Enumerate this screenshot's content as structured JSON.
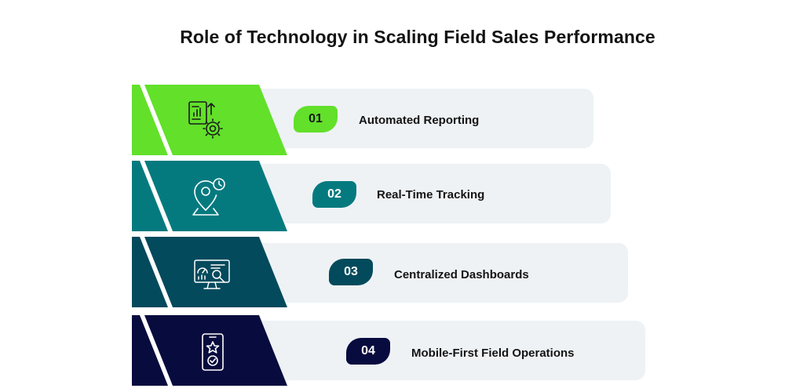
{
  "title": "Role of Technology in Scaling Field Sales Performance",
  "steps": [
    {
      "number": "01",
      "label": "Automated Reporting",
      "color": "#62e02a",
      "badge_text_color": "#1a1a1a",
      "icon": "report-gear-icon"
    },
    {
      "number": "02",
      "label": "Real-Time Tracking",
      "color": "#047a7f",
      "badge_text_color": "#ffffff",
      "icon": "location-clock-icon"
    },
    {
      "number": "03",
      "label": "Centralized Dashboards",
      "color": "#034a5c",
      "badge_text_color": "#ffffff",
      "icon": "monitor-dashboard-icon"
    },
    {
      "number": "04",
      "label": "Mobile-First Field Operations",
      "color": "#070b3e",
      "badge_text_color": "#ffffff",
      "icon": "mobile-star-icon"
    }
  ]
}
